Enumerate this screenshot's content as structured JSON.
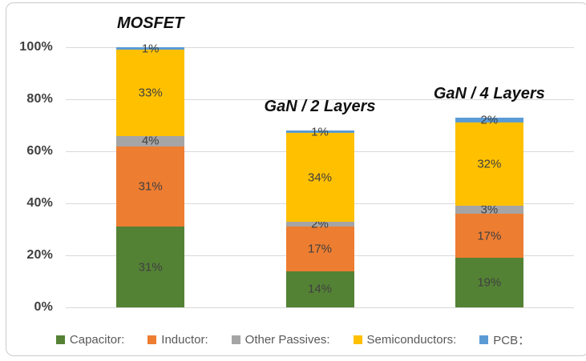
{
  "chart_data": {
    "type": "bar",
    "stacked": true,
    "categories": [
      "MOSFET",
      "GaN / 2 Layers",
      "GaN / 4 Layers"
    ],
    "series": [
      {
        "name": "Capacitor:",
        "color": "#548235",
        "values": [
          31,
          14,
          19
        ]
      },
      {
        "name": "Inductor:",
        "color": "#ED7D31",
        "values": [
          31,
          17,
          17
        ]
      },
      {
        "name": "Other Passives:",
        "color": "#A5A5A5",
        "values": [
          4,
          2,
          3
        ]
      },
      {
        "name": "Semiconductors:",
        "color": "#FFC000",
        "values": [
          33,
          34,
          32
        ]
      },
      {
        "name": "PCB：",
        "color": "#5B9BD5",
        "values": [
          1,
          1,
          2
        ]
      }
    ],
    "stack_totals": [
      100,
      68,
      73
    ],
    "data_labels": [
      [
        "31%",
        "14%",
        "19%"
      ],
      [
        "31%",
        "17%",
        "17%"
      ],
      [
        "4%",
        "2%",
        "3%"
      ],
      [
        "33%",
        "34%",
        "32%"
      ],
      [
        "1%",
        "1%",
        "2%"
      ]
    ],
    "ylim": [
      0,
      100
    ],
    "y_ticks": [
      0,
      20,
      40,
      60,
      80,
      100
    ],
    "y_tick_labels": [
      "0%",
      "20%",
      "40%",
      "60%",
      "80%",
      "100%"
    ],
    "grid": true,
    "legend_position": "bottom",
    "xlabel": "",
    "ylabel": "",
    "title": ""
  },
  "style": {
    "gridline_color": "#D9D9D9",
    "axis_label_color": "#404040",
    "data_label_color": "#404040",
    "category_title_color": "#111111",
    "legend_text_color": "#595959",
    "border_color": "#C9C9C9",
    "background": "#FFFFFF"
  }
}
